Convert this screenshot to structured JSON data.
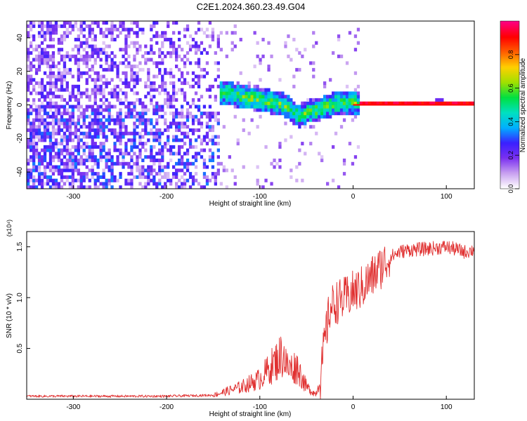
{
  "title": "C2E1.2024.360.23.49.G04",
  "chart_data": [
    {
      "type": "heatmap",
      "xlabel": "Height of straight line (km)",
      "ylabel": "Frequency (Hz)",
      "xlim": [
        -350,
        130
      ],
      "ylim": [
        -50,
        50
      ],
      "xticks": [
        -300,
        -200,
        -100,
        0,
        100
      ],
      "yticks": [
        -40,
        -20,
        0,
        20,
        40
      ],
      "colorbar": {
        "label": "Normalized spectral amplitude",
        "range": [
          0,
          1
        ],
        "ticks": [
          "0.0",
          "0.2",
          "0.4",
          "0.6",
          "0.8"
        ],
        "colors": [
          "#ffffff",
          "#c8a0f0",
          "#7a30f0",
          "#3a20ff",
          "#00b0ff",
          "#00e0c0",
          "#00e040",
          "#a0e000",
          "#ffd000",
          "#ff6000",
          "#ff0000",
          "#ff0080"
        ]
      },
      "signal_track": {
        "x": [
          -145,
          -130,
          -120,
          -110,
          -100,
          -90,
          -80,
          -70,
          -60,
          -50,
          -40,
          -30,
          -20,
          -10,
          0,
          50,
          100,
          130
        ],
        "y": [
          7,
          5,
          4,
          3,
          2,
          1,
          0,
          -3,
          -8,
          -5,
          -4,
          -2,
          0,
          1,
          0,
          0,
          0,
          0
        ]
      }
    },
    {
      "type": "line",
      "xlabel": "Height of straight line (km)",
      "ylabel": "SNR (10 * v/v)",
      "multiplier": "(x10⁴)",
      "xlim": [
        -350,
        130
      ],
      "ylim": [
        0,
        1.65
      ],
      "xticks": [
        -300,
        -200,
        -100,
        0,
        100
      ],
      "yticks": [
        "0.5",
        "1.0",
        "1.5"
      ],
      "color": "#e03030",
      "series": [
        {
          "x": [
            -350,
            -200,
            -150,
            -120,
            -100,
            -90,
            -80,
            -75,
            -70,
            -60,
            -50,
            -40,
            -35,
            -30,
            -25,
            -20,
            -10,
            0,
            10,
            20,
            30,
            40,
            50,
            60,
            80,
            100,
            120,
            130
          ],
          "y": [
            0.03,
            0.03,
            0.04,
            0.12,
            0.2,
            0.3,
            0.4,
            0.45,
            0.3,
            0.32,
            0.12,
            0.05,
            0.2,
            0.6,
            0.88,
            0.95,
            0.98,
            1.05,
            1.1,
            1.2,
            1.3,
            1.4,
            1.45,
            1.47,
            1.48,
            1.5,
            1.45,
            1.47
          ]
        }
      ]
    }
  ]
}
